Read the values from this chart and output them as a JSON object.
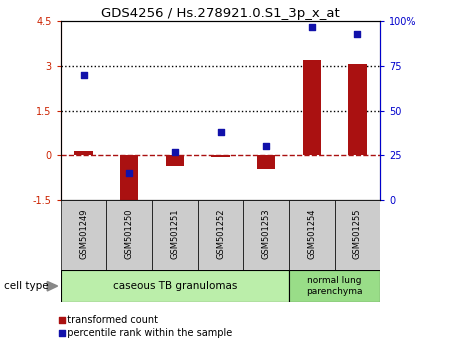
{
  "title": "GDS4256 / Hs.278921.0.S1_3p_x_at",
  "samples": [
    "GSM501249",
    "GSM501250",
    "GSM501251",
    "GSM501252",
    "GSM501253",
    "GSM501254",
    "GSM501255"
  ],
  "transformed_count": [
    0.15,
    -1.55,
    -0.35,
    -0.05,
    -0.45,
    3.2,
    3.05
  ],
  "percentile_rank": [
    70,
    15,
    27,
    38,
    30,
    97,
    93
  ],
  "left_ylim": [
    -1.5,
    4.5
  ],
  "right_ylim": [
    0,
    100
  ],
  "left_yticks": [
    -1.5,
    0,
    1.5,
    3.0,
    4.5
  ],
  "left_yticklabels": [
    "-1.5",
    "0",
    "1.5",
    "3",
    "4.5"
  ],
  "right_yticks": [
    0,
    25,
    50,
    75,
    100
  ],
  "right_yticklabels": [
    "0",
    "25",
    "50",
    "75",
    "100%"
  ],
  "dotted_lines": [
    1.5,
    3.0
  ],
  "zero_line": 0,
  "bar_color": "#aa1111",
  "dot_color": "#1111aa",
  "bar_width": 0.4,
  "cell_type1_label": "caseous TB granulomas",
  "cell_type2_label": "normal lung\nparenchyma",
  "cell_type1_color": "#bbeeaa",
  "cell_type2_color": "#99dd88",
  "cell_type_label": "cell type",
  "legend_transformed": "transformed count",
  "legend_percentile": "percentile rank within the sample",
  "left_axis_color": "#cc2200",
  "right_axis_color": "#0000cc",
  "bg_color": "#ffffff",
  "tick_area_color": "#cccccc"
}
